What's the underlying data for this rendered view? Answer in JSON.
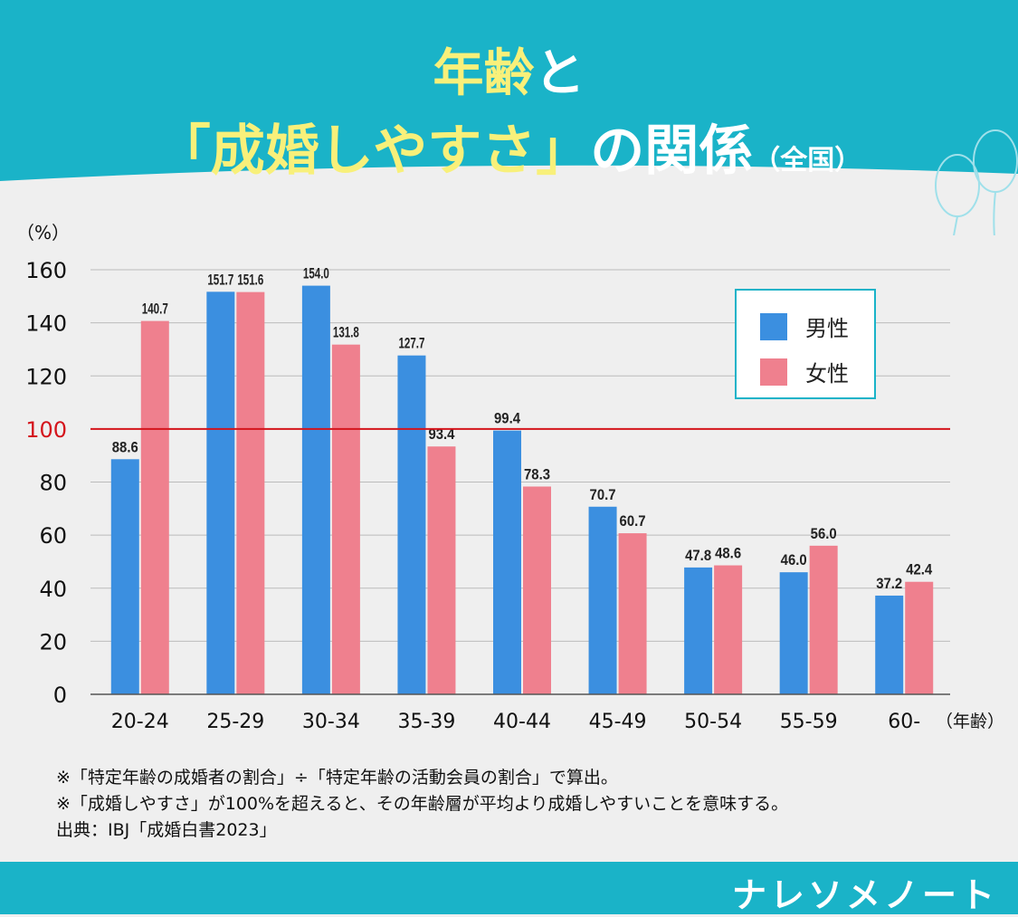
{
  "title": {
    "line1_highlight": "年齢",
    "line1_rest": "と",
    "line2_highlight": "「成婚しやすさ」",
    "line2_rest": "の関係",
    "line2_small": "（全国）"
  },
  "colors": {
    "male": "#3b8fe0",
    "female": "#ef808e",
    "reference": "#d4141c",
    "brand": "#1ab3c8"
  },
  "chart_data": {
    "type": "bar",
    "ylabel": "（%）",
    "xlabel": "（年齢）",
    "ylim": [
      0,
      160
    ],
    "yticks": [
      0,
      20,
      40,
      60,
      80,
      100,
      120,
      140,
      160
    ],
    "grid": true,
    "reference_line": 100,
    "legend": "top-right",
    "categories": [
      "20-24",
      "25-29",
      "30-34",
      "35-39",
      "40-44",
      "45-49",
      "50-54",
      "55-59",
      "60-"
    ],
    "series": [
      {
        "name": "男性",
        "values": [
          88.6,
          151.7,
          154.0,
          127.7,
          99.4,
          70.7,
          47.8,
          46.0,
          37.2
        ]
      },
      {
        "name": "女性",
        "values": [
          140.7,
          151.6,
          131.8,
          93.4,
          78.3,
          60.7,
          48.6,
          56.0,
          42.4
        ]
      }
    ]
  },
  "notes": [
    "※「特定年齢の成婚者の割合」÷「特定年齢の活動会員の割合」で算出。",
    "※「成婚しやすさ」が100%を超えると、その年齢層が平均より成婚しやすいことを意味する。",
    "出典：IBJ「成婚白書2023」"
  ],
  "logo": "ナレソメノート"
}
